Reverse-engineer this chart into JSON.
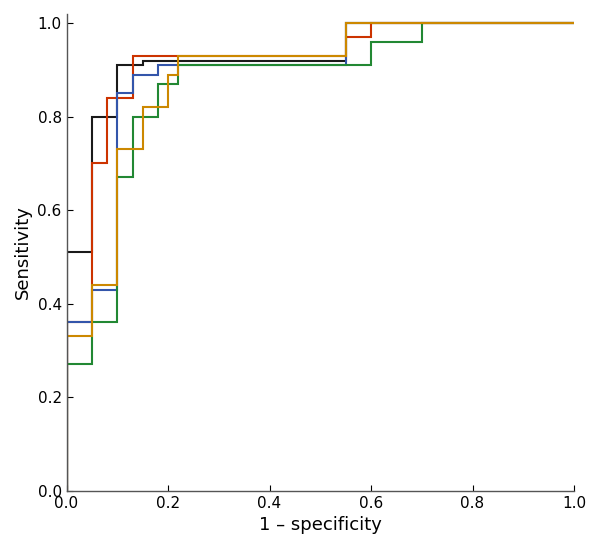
{
  "title": "",
  "xlabel": "1 – specificity",
  "ylabel": "Sensitivity",
  "xlim": [
    0.0,
    1.0
  ],
  "ylim": [
    0.0,
    1.02
  ],
  "curves": [
    {
      "color": "#1a1a1a",
      "name": "black",
      "fpr": [
        0.0,
        0.0,
        0.05,
        0.05,
        0.1,
        0.1,
        0.15,
        0.15,
        0.55,
        0.55,
        0.6,
        0.6,
        1.0
      ],
      "tpr": [
        0.0,
        0.51,
        0.51,
        0.8,
        0.8,
        0.91,
        0.91,
        0.92,
        0.92,
        1.0,
        1.0,
        1.0,
        1.0
      ]
    },
    {
      "color": "#cc3300",
      "name": "red",
      "fpr": [
        0.0,
        0.0,
        0.05,
        0.05,
        0.08,
        0.08,
        0.13,
        0.13,
        0.18,
        0.18,
        0.55,
        0.55,
        0.6,
        0.6,
        1.0
      ],
      "tpr": [
        0.0,
        0.36,
        0.36,
        0.7,
        0.7,
        0.84,
        0.84,
        0.93,
        0.93,
        0.93,
        0.93,
        0.97,
        0.97,
        1.0,
        1.0
      ]
    },
    {
      "color": "#3355aa",
      "name": "blue",
      "fpr": [
        0.0,
        0.0,
        0.05,
        0.05,
        0.1,
        0.1,
        0.13,
        0.13,
        0.18,
        0.18,
        0.55,
        0.55,
        0.6,
        0.6,
        1.0
      ],
      "tpr": [
        0.0,
        0.36,
        0.36,
        0.43,
        0.43,
        0.85,
        0.85,
        0.89,
        0.89,
        0.91,
        0.91,
        1.0,
        1.0,
        1.0,
        1.0
      ]
    },
    {
      "color": "#228833",
      "name": "green",
      "fpr": [
        0.0,
        0.0,
        0.05,
        0.05,
        0.1,
        0.1,
        0.13,
        0.13,
        0.18,
        0.18,
        0.22,
        0.22,
        0.6,
        0.6,
        0.7,
        0.7,
        1.0
      ],
      "tpr": [
        0.0,
        0.27,
        0.27,
        0.36,
        0.36,
        0.67,
        0.67,
        0.8,
        0.8,
        0.87,
        0.87,
        0.91,
        0.91,
        0.96,
        0.96,
        1.0,
        1.0
      ]
    },
    {
      "color": "#cc8800",
      "name": "orange",
      "fpr": [
        0.0,
        0.0,
        0.05,
        0.05,
        0.1,
        0.1,
        0.15,
        0.15,
        0.2,
        0.2,
        0.22,
        0.22,
        0.55,
        0.55,
        1.0
      ],
      "tpr": [
        0.0,
        0.33,
        0.33,
        0.44,
        0.44,
        0.73,
        0.73,
        0.82,
        0.82,
        0.89,
        0.89,
        0.93,
        0.93,
        1.0,
        1.0
      ]
    }
  ],
  "linewidth": 1.5,
  "tick_fontsize": 11,
  "label_fontsize": 13,
  "xticks": [
    0.0,
    0.2,
    0.4,
    0.6,
    0.8,
    1.0
  ],
  "yticks": [
    0.0,
    0.2,
    0.4,
    0.6,
    0.8,
    1.0
  ]
}
